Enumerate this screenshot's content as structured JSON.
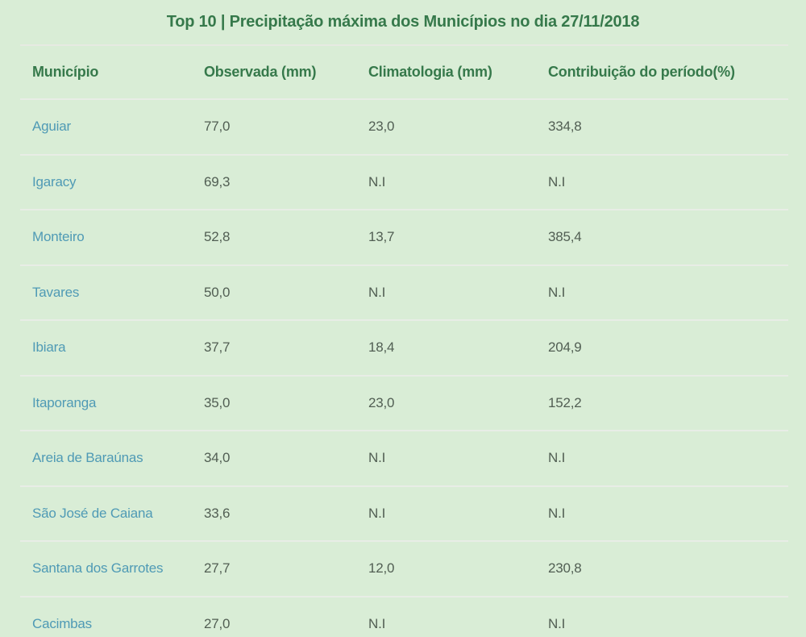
{
  "chart_data": {
    "type": "table",
    "title": "Top 10 | Precipitação máxima dos Municípios no dia 27/11/2018",
    "columns": [
      "Município",
      "Observada (mm)",
      "Climatologia (mm)",
      "Contribuição do período(%)"
    ],
    "rows": [
      {
        "municipio": "Aguiar",
        "observada": "77,0",
        "climatologia": "23,0",
        "contribuicao": "334,8"
      },
      {
        "municipio": "Igaracy",
        "observada": "69,3",
        "climatologia": "N.I",
        "contribuicao": "N.I"
      },
      {
        "municipio": "Monteiro",
        "observada": "52,8",
        "climatologia": "13,7",
        "contribuicao": "385,4"
      },
      {
        "municipio": "Tavares",
        "observada": "50,0",
        "climatologia": "N.I",
        "contribuicao": "N.I"
      },
      {
        "municipio": "Ibiara",
        "observada": "37,7",
        "climatologia": "18,4",
        "contribuicao": "204,9"
      },
      {
        "municipio": "Itaporanga",
        "observada": "35,0",
        "climatologia": "23,0",
        "contribuicao": "152,2"
      },
      {
        "municipio": "Areia de Baraúnas",
        "observada": "34,0",
        "climatologia": "N.I",
        "contribuicao": "N.I"
      },
      {
        "municipio": "São José de Caiana",
        "observada": "33,6",
        "climatologia": "N.I",
        "contribuicao": "N.I"
      },
      {
        "municipio": "Santana dos Garrotes",
        "observada": "27,7",
        "climatologia": "12,0",
        "contribuicao": "230,8"
      },
      {
        "municipio": "Cacimbas",
        "observada": "27,0",
        "climatologia": "N.I",
        "contribuicao": "N.I"
      }
    ]
  },
  "colors": {
    "background": "#d9edd6",
    "heading_green": "#36794b",
    "link_blue": "#4f9ab5",
    "value_gray": "#515e53",
    "divider": "#e8ede6"
  }
}
